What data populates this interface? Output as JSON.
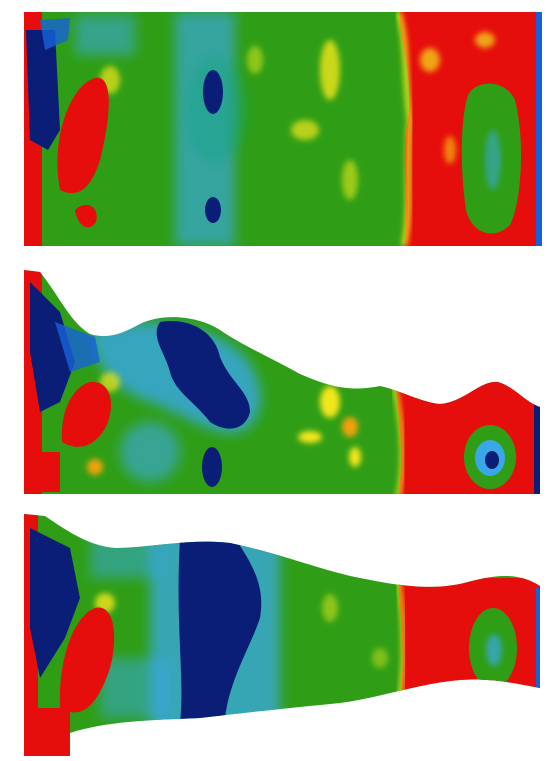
{
  "colors": {
    "background": "#ffffff",
    "red": "#e60d0d",
    "red_dark": "#d40a0a",
    "orange": "#f2a10c",
    "yellow": "#f2e61a",
    "yellow_green": "#b6d51c",
    "green": "#2f9e16",
    "green_light": "#4db526",
    "teal": "#1aa58a",
    "light_blue": "#3aa8e8",
    "blue": "#1761d8",
    "dark_blue": "#0a1e78"
  },
  "panels": [
    {
      "name": "panel-top",
      "shape": "rectangular slab"
    },
    {
      "name": "panel-middle",
      "shape": "tapered slab with rising left edge and central bulge"
    },
    {
      "name": "panel-bottom",
      "shape": "waisted slab with narrow midsection"
    }
  ]
}
